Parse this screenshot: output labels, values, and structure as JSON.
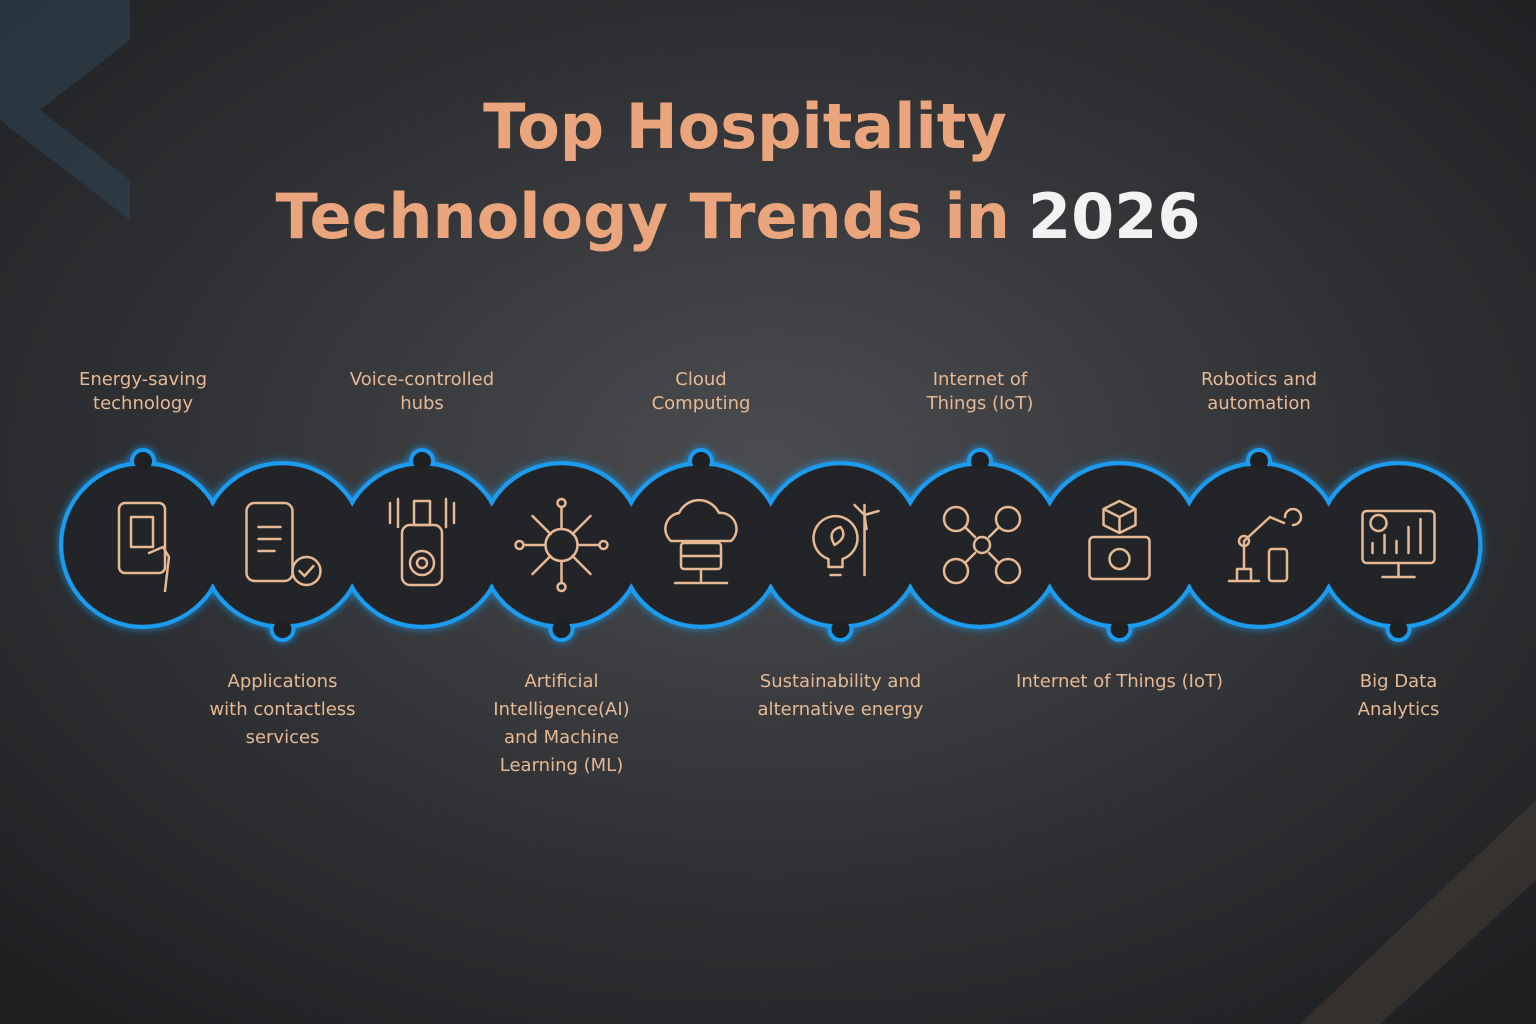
{
  "title": {
    "line1": "Top Hospitality",
    "line2": "Technology Trends in",
    "year": "2026"
  },
  "items": [
    {
      "lines": [
        "Energy-saving",
        "technology"
      ]
    },
    {
      "lines": [
        "Applications",
        "with  contactless",
        "services"
      ]
    },
    {
      "lines": [
        "Voice-controlled",
        "hubs"
      ]
    },
    {
      "lines": [
        "Artificial",
        "Intelligence(AI)",
        "and Machine",
        "Learning (ML)"
      ]
    },
    {
      "lines": [
        "Cloud",
        "Computing"
      ]
    },
    {
      "lines": [
        "Sustainability and",
        "alternative energy"
      ]
    },
    {
      "lines": [
        "Internet of",
        "Things (IoT)"
      ]
    },
    {
      "lines": [
        "Internet of Things (IoT)"
      ]
    },
    {
      "lines": [
        "Robotics and",
        "automation"
      ]
    },
    {
      "lines": [
        "Big Data",
        "Analytics"
      ]
    }
  ]
}
